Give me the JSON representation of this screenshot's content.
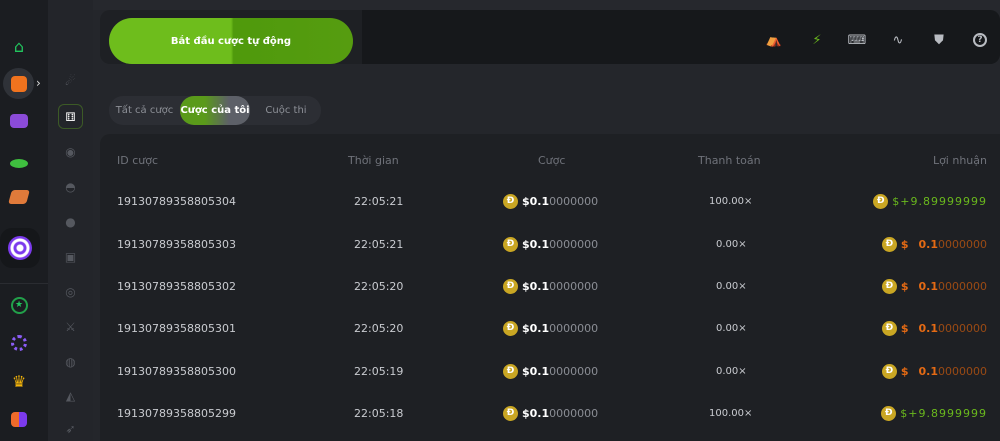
{
  "nav": {
    "primary": [
      "home-icon",
      "dice-icon",
      "slots-icon",
      "live-casino-icon",
      "cards-icon",
      "target-icon",
      "star-icon",
      "circle-icon",
      "crown-icon",
      "puzzle-icon"
    ],
    "secondary": [
      "crash-icon",
      "dice-icon",
      "roulette-icon",
      "mines-icon",
      "plinko-icon",
      "limbo-icon",
      "keno-icon",
      "sword-icon",
      "wheel-icon",
      "hilo-icon",
      "rocket-icon"
    ]
  },
  "header": {
    "start_auto_bet": "Bắt đầu cược tự động",
    "icons": [
      "theater-icon",
      "lightning-icon",
      "keyboard-icon",
      "chart-curve-icon",
      "acorn-icon",
      "help-icon"
    ]
  },
  "tabs": [
    {
      "label": "Tất cả cược"
    },
    {
      "label": "Cược của tôi",
      "active": true
    },
    {
      "label": "Cuộc thi"
    }
  ],
  "table": {
    "headers": [
      "ID cược",
      "Thời gian",
      "Cược",
      "Thanh toán",
      "Lợi nhuận"
    ],
    "rows": [
      {
        "id": "19130789358805304",
        "time": "22:05:21",
        "bet_main": "$0.1",
        "bet_rest": "0000000",
        "payout": "100.00×",
        "profit_sign": "$+",
        "profit_main": "9.89999999",
        "profit_rest": "",
        "win": true
      },
      {
        "id": "19130789358805303",
        "time": "22:05:21",
        "bet_main": "$0.1",
        "bet_rest": "0000000",
        "payout": "0.00×",
        "profit_sign": "$",
        "profit_main": "0.1",
        "profit_rest": "0000000",
        "win": false
      },
      {
        "id": "19130789358805302",
        "time": "22:05:20",
        "bet_main": "$0.1",
        "bet_rest": "0000000",
        "payout": "0.00×",
        "profit_sign": "$",
        "profit_main": "0.1",
        "profit_rest": "0000000",
        "win": false
      },
      {
        "id": "19130789358805301",
        "time": "22:05:20",
        "bet_main": "$0.1",
        "bet_rest": "0000000",
        "payout": "0.00×",
        "profit_sign": "$",
        "profit_main": "0.1",
        "profit_rest": "0000000",
        "win": false
      },
      {
        "id": "19130789358805300",
        "time": "22:05:19",
        "bet_main": "$0.1",
        "bet_rest": "0000000",
        "payout": "0.00×",
        "profit_sign": "$",
        "profit_main": "0.1",
        "profit_rest": "0000000",
        "win": false
      },
      {
        "id": "19130789358805299",
        "time": "22:05:18",
        "bet_main": "$0.1",
        "bet_rest": "0000000",
        "payout": "100.00×",
        "profit_sign": "$+",
        "profit_main": "9.8999999",
        "profit_rest": "",
        "win": true
      }
    ]
  },
  "coin_symbol": "Đ",
  "colors": {
    "accent": "#6ebd1c",
    "win": "#6ab81d",
    "loss": "#e46a14",
    "coin": "#c9a623"
  }
}
